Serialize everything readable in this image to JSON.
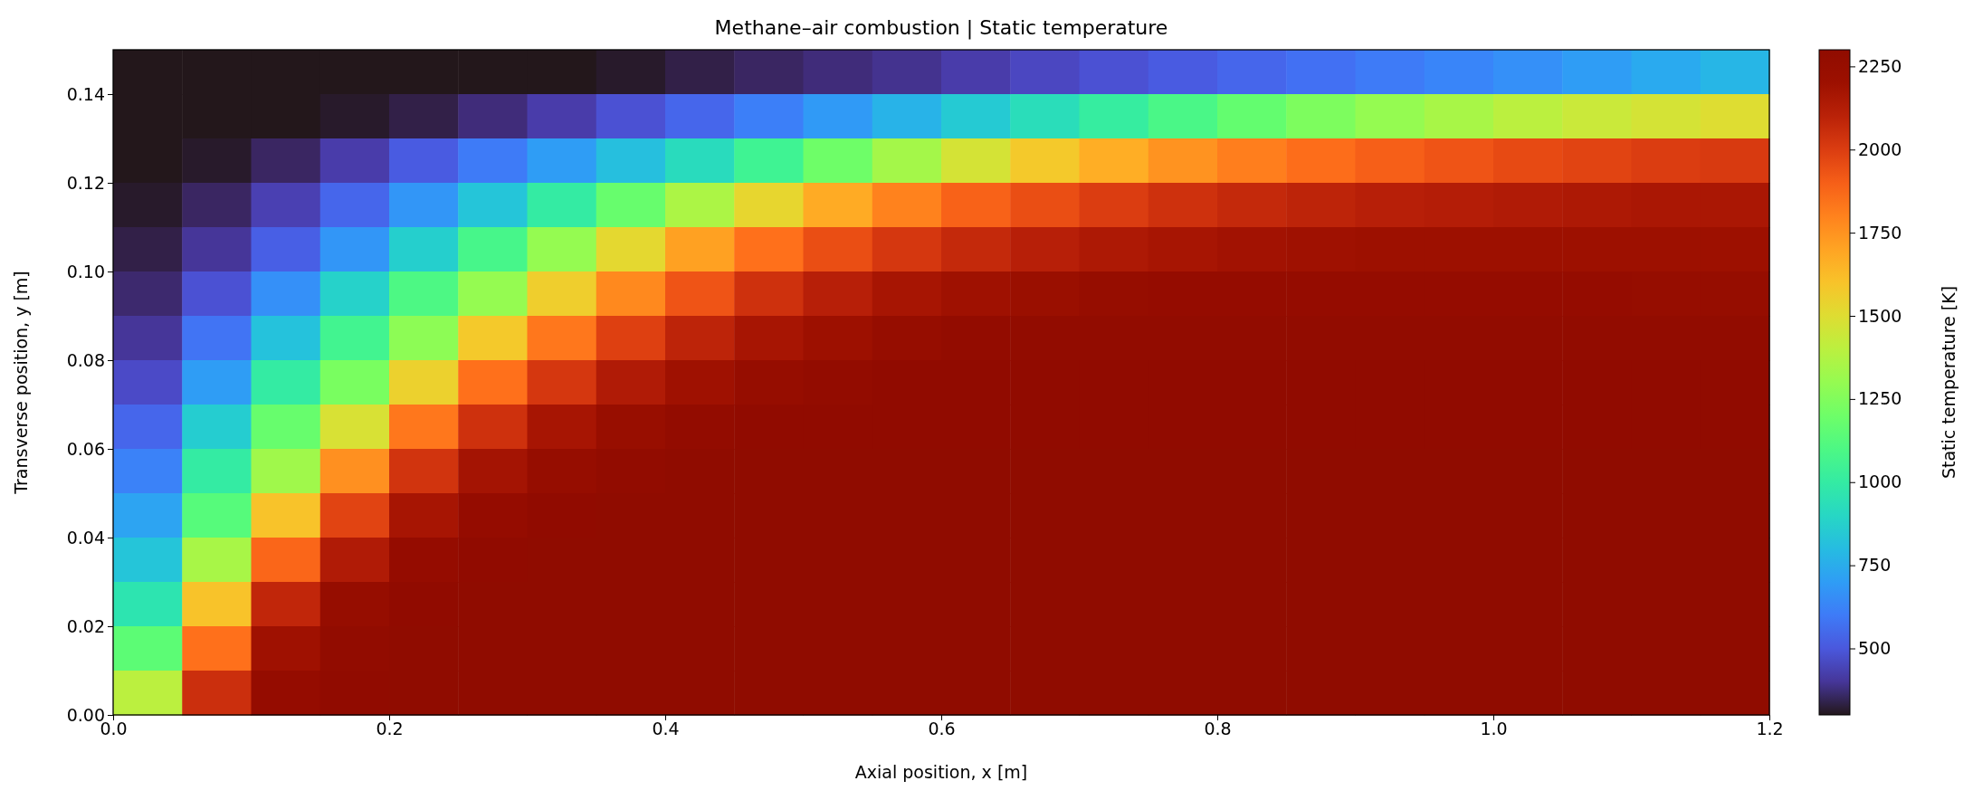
{
  "chart_data": {
    "type": "heatmap",
    "title": "Methane–air combustion | Static temperature",
    "xlabel": "Axial position, x [m]",
    "ylabel": "Transverse position, y [m]",
    "clabel": "Static temperature [K]",
    "xlim": [
      0,
      1.2
    ],
    "ylim": [
      0,
      0.15
    ],
    "xticks": [
      {
        "value": 0,
        "label": "0.0"
      },
      {
        "value": 0.2,
        "label": "0.2"
      },
      {
        "value": 0.4,
        "label": "0.4"
      },
      {
        "value": 0.6,
        "label": "0.6"
      },
      {
        "value": 0.8,
        "label": "0.8"
      },
      {
        "value": 1.0,
        "label": "1.0"
      },
      {
        "value": 1.2,
        "label": "1.2"
      }
    ],
    "yticks": [
      {
        "value": 0,
        "label": "0.00"
      },
      {
        "value": 0.02,
        "label": "0.02"
      },
      {
        "value": 0.04,
        "label": "0.04"
      },
      {
        "value": 0.06,
        "label": "0.06"
      },
      {
        "value": 0.08,
        "label": "0.08"
      },
      {
        "value": 0.1,
        "label": "0.10"
      },
      {
        "value": 0.12,
        "label": "0.12"
      },
      {
        "value": 0.14,
        "label": "0.14"
      }
    ],
    "clim": [
      300,
      2300
    ],
    "cticks": [
      500,
      750,
      1000,
      1250,
      1500,
      1750,
      2000,
      2250
    ],
    "cells": [
      [
        300,
        300,
        300,
        300,
        300,
        300,
        300,
        310,
        330,
        350,
        370,
        390,
        420,
        450,
        480,
        510,
        540,
        570,
        600,
        630,
        660,
        700,
        740,
        780
      ],
      [
        300,
        300,
        300,
        310,
        330,
        370,
        420,
        480,
        540,
        610,
        690,
        770,
        850,
        930,
        1010,
        1090,
        1170,
        1240,
        1300,
        1350,
        1400,
        1440,
        1470,
        1500
      ],
      [
        300,
        310,
        350,
        420,
        510,
        600,
        700,
        810,
        920,
        1050,
        1200,
        1340,
        1470,
        1580,
        1670,
        1750,
        1810,
        1860,
        1900,
        1930,
        1960,
        1980,
        2000,
        2010
      ],
      [
        310,
        350,
        430,
        540,
        680,
        830,
        1000,
        1180,
        1360,
        1530,
        1680,
        1800,
        1890,
        1950,
        2000,
        2040,
        2070,
        2090,
        2110,
        2120,
        2130,
        2140,
        2150,
        2150
      ],
      [
        330,
        400,
        520,
        680,
        870,
        1080,
        1300,
        1520,
        1710,
        1850,
        1950,
        2020,
        2070,
        2110,
        2140,
        2160,
        2180,
        2190,
        2200,
        2200,
        2200,
        2200,
        2200,
        2200
      ],
      [
        360,
        480,
        660,
        880,
        1100,
        1300,
        1560,
        1780,
        1930,
        2040,
        2110,
        2160,
        2190,
        2210,
        2230,
        2240,
        2240,
        2240,
        2240,
        2240,
        2240,
        2240,
        2230,
        2230
      ],
      [
        400,
        580,
        820,
        1060,
        1280,
        1580,
        1830,
        1990,
        2090,
        2160,
        2200,
        2230,
        2250,
        2260,
        2260,
        2260,
        2260,
        2260,
        2260,
        2260,
        2260,
        2260,
        2260,
        2260
      ],
      [
        460,
        700,
        1000,
        1230,
        1550,
        1850,
        2020,
        2130,
        2190,
        2230,
        2250,
        2270,
        2270,
        2270,
        2270,
        2270,
        2270,
        2270,
        2270,
        2270,
        2270,
        2270,
        2270,
        2270
      ],
      [
        540,
        860,
        1180,
        1480,
        1830,
        2040,
        2160,
        2220,
        2250,
        2270,
        2270,
        2270,
        2270,
        2270,
        2270,
        2270,
        2270,
        2270,
        2270,
        2270,
        2270,
        2270,
        2270,
        2270
      ],
      [
        620,
        1000,
        1330,
        1760,
        2030,
        2170,
        2230,
        2260,
        2280,
        2280,
        2280,
        2280,
        2280,
        2280,
        2280,
        2280,
        2280,
        2280,
        2280,
        2280,
        2280,
        2280,
        2280,
        2280
      ],
      [
        720,
        1130,
        1600,
        1980,
        2160,
        2240,
        2270,
        2280,
        2280,
        2280,
        2280,
        2280,
        2280,
        2280,
        2280,
        2280,
        2280,
        2280,
        2280,
        2280,
        2280,
        2280,
        2280,
        2280
      ],
      [
        830,
        1350,
        1880,
        2130,
        2240,
        2270,
        2280,
        2280,
        2280,
        2280,
        2280,
        2280,
        2280,
        2280,
        2280,
        2280,
        2280,
        2280,
        2280,
        2280,
        2280,
        2280,
        2280,
        2280
      ],
      [
        960,
        1600,
        2080,
        2230,
        2270,
        2280,
        2280,
        2280,
        2280,
        2280,
        2280,
        2280,
        2280,
        2280,
        2280,
        2280,
        2280,
        2280,
        2280,
        2280,
        2280,
        2280,
        2280,
        2280
      ],
      [
        1150,
        1850,
        2190,
        2260,
        2280,
        2280,
        2280,
        2280,
        2280,
        2280,
        2280,
        2280,
        2280,
        2280,
        2280,
        2280,
        2280,
        2280,
        2280,
        2280,
        2280,
        2280,
        2280,
        2280
      ],
      [
        1400,
        2050,
        2240,
        2270,
        2280,
        2280,
        2280,
        2280,
        2280,
        2280,
        2280,
        2280,
        2280,
        2280,
        2280,
        2280,
        2280,
        2280,
        2280,
        2280,
        2280,
        2280,
        2280,
        2280
      ]
    ]
  }
}
